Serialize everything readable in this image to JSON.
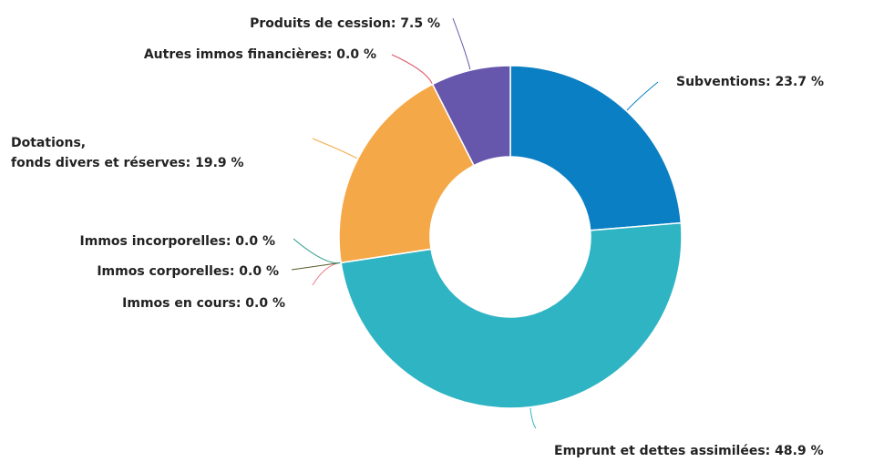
{
  "chart_data": {
    "type": "donut",
    "categories": [
      "Subventions",
      "Emprunt et dettes assimilées",
      "Immos en cours",
      "Immos corporelles",
      "Immos incorporelles",
      "Dotations,\nfonds divers et réserves",
      "Autres immos financières",
      "Produits de cession"
    ],
    "values": [
      23.7,
      48.9,
      0.0,
      0.0,
      0.0,
      19.9,
      0.0,
      7.5
    ],
    "value_labels": [
      "23.7 %",
      "48.9 %",
      "0.0 %",
      "0.0 %",
      "0.0 %",
      "19.9 %",
      "0.0 %",
      "7.5 %"
    ],
    "colors": [
      "#0b7fc3",
      "#2fb4c3",
      "#e8808a",
      "#5a5a2a",
      "#2a9a8a",
      "#f5a847",
      "#e05060",
      "#6656ac"
    ]
  }
}
